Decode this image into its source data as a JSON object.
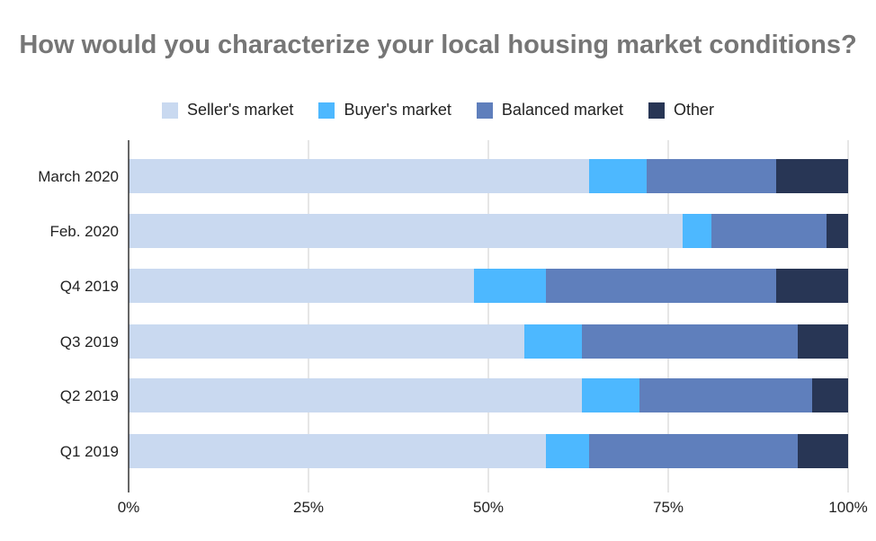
{
  "chart_data": {
    "type": "bar",
    "orientation": "horizontal",
    "stacked": true,
    "title": "How would you characterize your local housing market conditions?",
    "categories": [
      "March 2020",
      "Feb. 2020",
      "Q4 2019",
      "Q3 2019",
      "Q2 2019",
      "Q1 2019"
    ],
    "series": [
      {
        "name": "Seller's market",
        "color": "#c9d9f0",
        "values": [
          64,
          77,
          48,
          55,
          63,
          58
        ]
      },
      {
        "name": "Buyer's market",
        "color": "#4db8ff",
        "values": [
          8,
          4,
          10,
          8,
          8,
          6
        ]
      },
      {
        "name": "Balanced market",
        "color": "#5f7fbc",
        "values": [
          18,
          16,
          32,
          30,
          24,
          29
        ]
      },
      {
        "name": "Other",
        "color": "#283655",
        "values": [
          10,
          3,
          10,
          7,
          5,
          7
        ]
      }
    ],
    "x_ticks": [
      "0%",
      "25%",
      "50%",
      "75%",
      "100%"
    ],
    "xlim": [
      0,
      100
    ],
    "grid": true,
    "legend_position": "top"
  }
}
